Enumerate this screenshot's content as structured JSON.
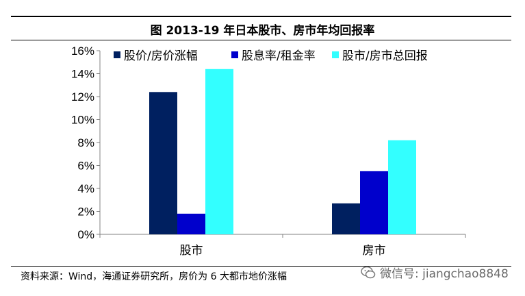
{
  "figure": {
    "title": "图 2013-19 年日本股市、房市年均回报率",
    "source": "资料来源：Wind，海通证券研究所，房价为 6 大都市地价涨幅",
    "watermark": "微信号: jiangchao8848"
  },
  "chart_data": {
    "type": "bar",
    "categories": [
      "股市",
      "房市"
    ],
    "series": [
      {
        "name": "股价/房价涨幅",
        "values": [
          12.4,
          2.7
        ],
        "color": "#002060"
      },
      {
        "name": "股息率/租金率",
        "values": [
          1.8,
          5.5
        ],
        "color": "#0000CC"
      },
      {
        "name": "股市/房市总回报",
        "values": [
          14.4,
          8.2
        ],
        "color": "#33FFFF"
      }
    ],
    "ylim": [
      0,
      16
    ],
    "yticks": [
      "0%",
      "2%",
      "4%",
      "6%",
      "8%",
      "10%",
      "12%",
      "14%",
      "16%"
    ],
    "unit": "%",
    "legend_position": "top",
    "grid": false
  }
}
